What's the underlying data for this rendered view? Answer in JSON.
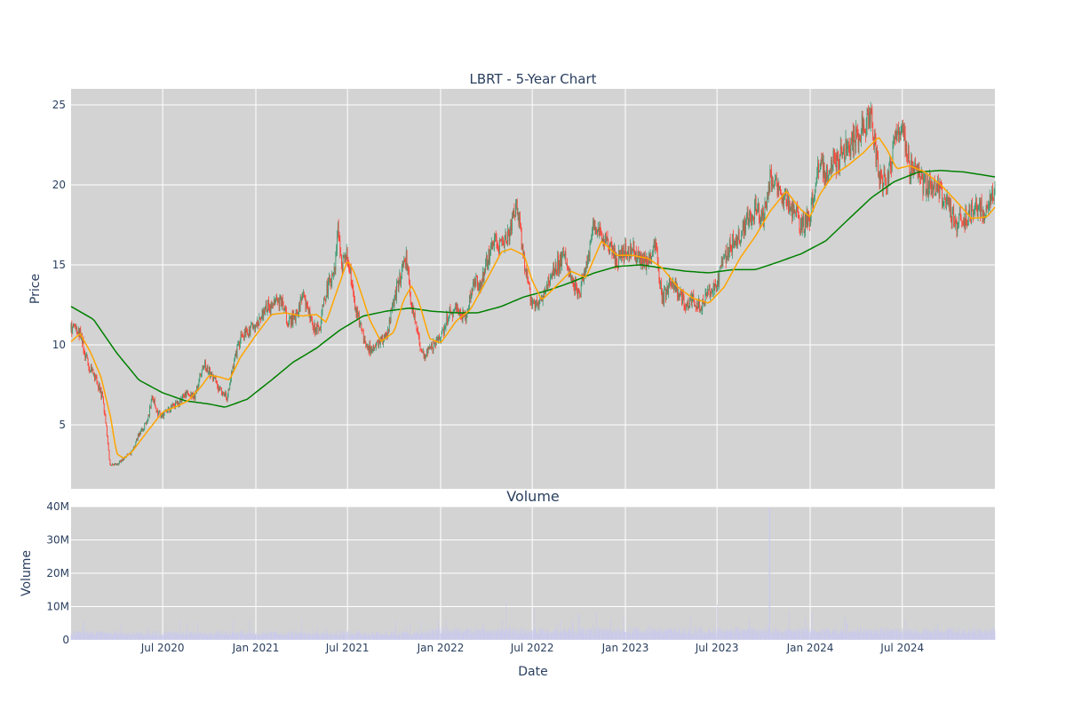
{
  "chart_data": [
    {
      "type": "candlestick",
      "title": "LBRT - 5-Year Chart",
      "ylabel": "Price",
      "xlabel": "",
      "x_range": [
        "2020-01-02",
        "2024-12-31"
      ],
      "ylim": [
        1,
        26
      ],
      "yticks": [
        5,
        10,
        15,
        20,
        25
      ],
      "xtick_labels": [
        "Jul 2020",
        "Jan 2021",
        "Jul 2021",
        "Jan 2022",
        "Jul 2022",
        "Jan 2023",
        "Jul 2023",
        "Jan 2024",
        "Jul 2024"
      ],
      "xtick_dates": [
        "2020-07-01",
        "2021-01-01",
        "2021-07-01",
        "2022-01-01",
        "2022-07-01",
        "2023-01-01",
        "2023-07-01",
        "2024-01-01",
        "2024-07-01"
      ],
      "grid": true,
      "legend": "none",
      "colors": {
        "increasing": "#3d9970",
        "decreasing": "#ff4136",
        "ma_short": "#ffa500",
        "ma_long": "#008000",
        "plot_bg": "#d3d3d3"
      },
      "close_series": [
        [
          "2020-01-02",
          11.0
        ],
        [
          "2020-01-20",
          10.8
        ],
        [
          "2020-02-05",
          8.6
        ],
        [
          "2020-02-20",
          7.9
        ],
        [
          "2020-03-05",
          6.6
        ],
        [
          "2020-03-12",
          4.8
        ],
        [
          "2020-03-18",
          2.6
        ],
        [
          "2020-04-01",
          2.5
        ],
        [
          "2020-04-15",
          2.9
        ],
        [
          "2020-05-01",
          3.3
        ],
        [
          "2020-05-15",
          4.4
        ],
        [
          "2020-06-01",
          5.2
        ],
        [
          "2020-06-10",
          6.8
        ],
        [
          "2020-06-20",
          5.8
        ],
        [
          "2020-07-01",
          5.6
        ],
        [
          "2020-07-15",
          6.0
        ],
        [
          "2020-08-01",
          6.4
        ],
        [
          "2020-08-20",
          7.1
        ],
        [
          "2020-09-01",
          6.7
        ],
        [
          "2020-09-20",
          8.8
        ],
        [
          "2020-10-05",
          8.2
        ],
        [
          "2020-10-20",
          7.2
        ],
        [
          "2020-11-05",
          6.8
        ],
        [
          "2020-11-20",
          9.2
        ],
        [
          "2020-12-05",
          10.6
        ],
        [
          "2020-12-20",
          11.0
        ],
        [
          "2021-01-05",
          11.3
        ],
        [
          "2021-01-20",
          12.5
        ],
        [
          "2021-02-05",
          12.4
        ],
        [
          "2021-02-20",
          12.9
        ],
        [
          "2021-03-05",
          11.4
        ],
        [
          "2021-03-20",
          11.8
        ],
        [
          "2021-04-05",
          13.0
        ],
        [
          "2021-04-20",
          11.4
        ],
        [
          "2021-05-05",
          10.8
        ],
        [
          "2021-05-20",
          13.4
        ],
        [
          "2021-06-05",
          14.5
        ],
        [
          "2021-06-12",
          17.3
        ],
        [
          "2021-06-20",
          15.0
        ],
        [
          "2021-07-01",
          15.6
        ],
        [
          "2021-07-15",
          12.5
        ],
        [
          "2021-08-01",
          10.5
        ],
        [
          "2021-08-15",
          9.7
        ],
        [
          "2021-09-01",
          10.2
        ],
        [
          "2021-09-15",
          10.4
        ],
        [
          "2021-10-01",
          12.8
        ],
        [
          "2021-10-15",
          14.5
        ],
        [
          "2021-10-25",
          15.4
        ],
        [
          "2021-11-05",
          12.4
        ],
        [
          "2021-11-20",
          10.0
        ],
        [
          "2021-12-01",
          9.3
        ],
        [
          "2021-12-15",
          9.8
        ],
        [
          "2022-01-01",
          10.5
        ],
        [
          "2022-01-15",
          11.8
        ],
        [
          "2022-02-01",
          12.4
        ],
        [
          "2022-02-20",
          11.7
        ],
        [
          "2022-03-05",
          13.9
        ],
        [
          "2022-03-10",
          14.2
        ],
        [
          "2022-03-20",
          13.6
        ],
        [
          "2022-04-01",
          15.2
        ],
        [
          "2022-04-20",
          16.5
        ],
        [
          "2022-05-01",
          16.0
        ],
        [
          "2022-05-15",
          16.8
        ],
        [
          "2022-06-01",
          18.6
        ],
        [
          "2022-06-15",
          15.0
        ],
        [
          "2022-07-01",
          12.4
        ],
        [
          "2022-07-15",
          12.6
        ],
        [
          "2022-08-01",
          13.8
        ],
        [
          "2022-08-15",
          14.8
        ],
        [
          "2022-09-01",
          15.6
        ],
        [
          "2022-09-15",
          14.2
        ],
        [
          "2022-10-01",
          13.2
        ],
        [
          "2022-10-15",
          15.0
        ],
        [
          "2022-11-01",
          17.6
        ],
        [
          "2022-11-15",
          16.8
        ],
        [
          "2022-12-01",
          16.2
        ],
        [
          "2022-12-15",
          15.3
        ],
        [
          "2023-01-01",
          15.8
        ],
        [
          "2023-01-15",
          16.0
        ],
        [
          "2023-02-01",
          15.0
        ],
        [
          "2023-02-15",
          15.4
        ],
        [
          "2023-03-01",
          16.0
        ],
        [
          "2023-03-15",
          12.8
        ],
        [
          "2023-04-01",
          14.0
        ],
        [
          "2023-04-15",
          13.2
        ],
        [
          "2023-05-01",
          12.6
        ],
        [
          "2023-05-15",
          12.8
        ],
        [
          "2023-06-01",
          12.4
        ],
        [
          "2023-06-15",
          13.4
        ],
        [
          "2023-07-01",
          13.8
        ],
        [
          "2023-07-15",
          15.4
        ],
        [
          "2023-08-01",
          16.4
        ],
        [
          "2023-08-15",
          16.8
        ],
        [
          "2023-09-01",
          17.8
        ],
        [
          "2023-09-15",
          18.6
        ],
        [
          "2023-10-01",
          17.8
        ],
        [
          "2023-10-15",
          20.5
        ],
        [
          "2023-11-01",
          19.8
        ],
        [
          "2023-11-15",
          19.0
        ],
        [
          "2023-12-01",
          18.4
        ],
        [
          "2023-12-15",
          17.4
        ],
        [
          "2024-01-01",
          18.0
        ],
        [
          "2024-01-15",
          21.2
        ],
        [
          "2024-02-01",
          20.8
        ],
        [
          "2024-02-15",
          21.4
        ],
        [
          "2024-03-01",
          21.8
        ],
        [
          "2024-03-15",
          22.4
        ],
        [
          "2024-04-01",
          22.8
        ],
        [
          "2024-04-15",
          23.8
        ],
        [
          "2024-05-01",
          24.2
        ],
        [
          "2024-05-15",
          20.5
        ],
        [
          "2024-06-01",
          20.2
        ],
        [
          "2024-06-15",
          22.5
        ],
        [
          "2024-07-01",
          23.5
        ],
        [
          "2024-07-15",
          21.0
        ],
        [
          "2024-08-01",
          20.5
        ],
        [
          "2024-08-15",
          20.0
        ],
        [
          "2024-09-01",
          19.8
        ],
        [
          "2024-09-15",
          19.4
        ],
        [
          "2024-10-01",
          18.6
        ],
        [
          "2024-10-15",
          17.6
        ],
        [
          "2024-11-01",
          17.8
        ],
        [
          "2024-11-15",
          18.4
        ],
        [
          "2024-12-01",
          18.6
        ],
        [
          "2024-12-15",
          18.2
        ],
        [
          "2024-12-31",
          19.8
        ]
      ],
      "ma_short_series": [
        [
          "2020-01-02",
          10.2
        ],
        [
          "2020-01-20",
          10.7
        ],
        [
          "2020-02-10",
          9.5
        ],
        [
          "2020-03-01",
          8.0
        ],
        [
          "2020-03-20",
          5.5
        ],
        [
          "2020-04-01",
          3.2
        ],
        [
          "2020-04-15",
          2.9
        ],
        [
          "2020-05-01",
          3.3
        ],
        [
          "2020-06-01",
          4.6
        ],
        [
          "2020-07-01",
          5.8
        ],
        [
          "2020-08-01",
          6.2
        ],
        [
          "2020-08-20",
          6.5
        ],
        [
          "2020-09-15",
          7.4
        ],
        [
          "2020-10-01",
          8.1
        ],
        [
          "2020-10-20",
          8.0
        ],
        [
          "2020-11-10",
          7.8
        ],
        [
          "2020-12-01",
          9.2
        ],
        [
          "2021-01-01",
          10.6
        ],
        [
          "2021-02-01",
          11.9
        ],
        [
          "2021-03-01",
          12.0
        ],
        [
          "2021-04-01",
          11.8
        ],
        [
          "2021-05-01",
          11.9
        ],
        [
          "2021-05-20",
          11.4
        ],
        [
          "2021-06-15",
          13.8
        ],
        [
          "2021-07-01",
          15.3
        ],
        [
          "2021-07-15",
          14.5
        ],
        [
          "2021-08-15",
          11.5
        ],
        [
          "2021-09-05",
          10.2
        ],
        [
          "2021-10-01",
          10.8
        ],
        [
          "2021-10-20",
          12.8
        ],
        [
          "2021-11-05",
          13.7
        ],
        [
          "2021-11-20",
          12.6
        ],
        [
          "2021-12-10",
          10.4
        ],
        [
          "2022-01-01",
          10.1
        ],
        [
          "2022-02-01",
          11.5
        ],
        [
          "2022-03-01",
          12.2
        ],
        [
          "2022-04-01",
          14.0
        ],
        [
          "2022-05-01",
          15.8
        ],
        [
          "2022-05-20",
          16.0
        ],
        [
          "2022-06-15",
          15.6
        ],
        [
          "2022-07-01",
          14.0
        ],
        [
          "2022-07-20",
          12.8
        ],
        [
          "2022-08-15",
          13.6
        ],
        [
          "2022-09-15",
          14.6
        ],
        [
          "2022-10-15",
          14.2
        ],
        [
          "2022-11-15",
          16.5
        ],
        [
          "2022-12-15",
          15.6
        ],
        [
          "2023-01-15",
          15.6
        ],
        [
          "2023-02-15",
          15.4
        ],
        [
          "2023-03-15",
          14.8
        ],
        [
          "2023-04-15",
          13.6
        ],
        [
          "2023-05-15",
          12.9
        ],
        [
          "2023-06-15",
          12.6
        ],
        [
          "2023-07-15",
          13.6
        ],
        [
          "2023-08-15",
          15.4
        ],
        [
          "2023-09-15",
          16.8
        ],
        [
          "2023-10-15",
          18.4
        ],
        [
          "2023-11-15",
          19.6
        ],
        [
          "2023-12-15",
          18.4
        ],
        [
          "2024-01-01",
          18.0
        ],
        [
          "2024-01-20",
          19.4
        ],
        [
          "2024-02-15",
          20.6
        ],
        [
          "2024-03-15",
          21.2
        ],
        [
          "2024-04-15",
          22.0
        ],
        [
          "2024-05-15",
          23.0
        ],
        [
          "2024-06-01",
          22.2
        ],
        [
          "2024-06-20",
          21.0
        ],
        [
          "2024-07-15",
          21.2
        ],
        [
          "2024-08-15",
          20.8
        ],
        [
          "2024-09-15",
          20.0
        ],
        [
          "2024-10-15",
          19.0
        ],
        [
          "2024-11-15",
          17.9
        ],
        [
          "2024-12-15",
          18.0
        ],
        [
          "2024-12-31",
          18.6
        ]
      ],
      "ma_long_series": [
        [
          "2020-01-02",
          12.4
        ],
        [
          "2020-02-15",
          11.6
        ],
        [
          "2020-04-01",
          9.5
        ],
        [
          "2020-05-15",
          7.8
        ],
        [
          "2020-07-01",
          7.0
        ],
        [
          "2020-08-15",
          6.5
        ],
        [
          "2020-10-01",
          6.3
        ],
        [
          "2020-11-01",
          6.1
        ],
        [
          "2020-12-15",
          6.6
        ],
        [
          "2021-02-01",
          7.8
        ],
        [
          "2021-03-15",
          8.9
        ],
        [
          "2021-05-01",
          9.8
        ],
        [
          "2021-06-15",
          10.9
        ],
        [
          "2021-08-01",
          11.8
        ],
        [
          "2021-09-15",
          12.1
        ],
        [
          "2021-11-01",
          12.3
        ],
        [
          "2021-12-15",
          12.1
        ],
        [
          "2022-02-01",
          12.0
        ],
        [
          "2022-03-15",
          12.0
        ],
        [
          "2022-05-01",
          12.4
        ],
        [
          "2022-06-15",
          13.0
        ],
        [
          "2022-08-01",
          13.4
        ],
        [
          "2022-09-15",
          13.9
        ],
        [
          "2022-11-01",
          14.5
        ],
        [
          "2022-12-15",
          14.9
        ],
        [
          "2023-02-01",
          15.0
        ],
        [
          "2023-03-15",
          14.8
        ],
        [
          "2023-05-01",
          14.6
        ],
        [
          "2023-06-15",
          14.5
        ],
        [
          "2023-08-01",
          14.7
        ],
        [
          "2023-09-15",
          14.7
        ],
        [
          "2023-11-01",
          15.2
        ],
        [
          "2023-12-15",
          15.7
        ],
        [
          "2024-02-01",
          16.5
        ],
        [
          "2024-03-15",
          17.8
        ],
        [
          "2024-05-01",
          19.2
        ],
        [
          "2024-06-15",
          20.2
        ],
        [
          "2024-08-01",
          20.8
        ],
        [
          "2024-09-15",
          20.9
        ],
        [
          "2024-11-01",
          20.8
        ],
        [
          "2024-12-31",
          20.5
        ]
      ]
    },
    {
      "type": "bar",
      "title": "Volume",
      "ylabel": "Volume",
      "xlabel": "Date",
      "ylim": [
        0,
        40000000
      ],
      "ytick_labels": [
        "0",
        "10M",
        "20M",
        "30M",
        "40M"
      ],
      "yticks": [
        0,
        10000000,
        20000000,
        30000000,
        40000000
      ],
      "xtick_labels": [
        "Jul 2020",
        "Jan 2021",
        "Jul 2021",
        "Jan 2022",
        "Jul 2022",
        "Jan 2023",
        "Jul 2023",
        "Jan 2024",
        "Jul 2024"
      ],
      "grid": true,
      "color": "#c9c9ee",
      "notable_values": [
        [
          "2022-05-10",
          11500000
        ],
        [
          "2022-07-05",
          9800000
        ],
        [
          "2022-11-05",
          8600000
        ],
        [
          "2023-07-01",
          10500000
        ],
        [
          "2023-10-13",
          39500000
        ],
        [
          "2023-11-20",
          8500000
        ],
        [
          "2024-03-08",
          7200000
        ]
      ]
    }
  ]
}
